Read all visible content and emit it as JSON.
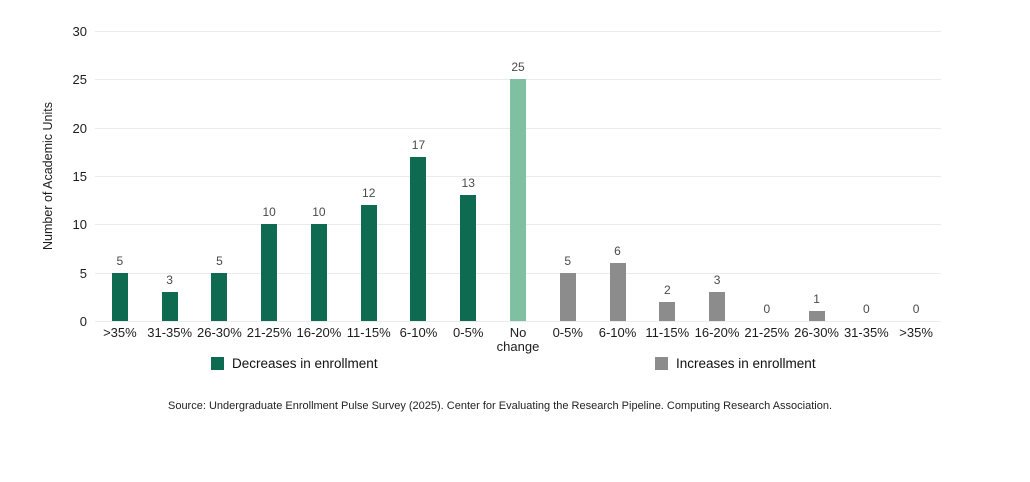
{
  "chart_data": {
    "type": "bar",
    "title": "",
    "xlabel": "",
    "ylabel": "Number of Academic Units",
    "ylim": [
      0,
      30
    ],
    "yticks": [
      0,
      5,
      10,
      15,
      20,
      25,
      30
    ],
    "grid": "horizontal",
    "legend_position": "bottom",
    "categories": [
      ">35%",
      "31-35%",
      "26-30%",
      "21-25%",
      "16-20%",
      "11-15%",
      "6-10%",
      "0-5%",
      "No change",
      "0-5%",
      "6-10%",
      "11-15%",
      "16-20%",
      "21-25%",
      "26-30%",
      "31-35%",
      ">35%"
    ],
    "values": [
      5,
      3,
      5,
      10,
      10,
      12,
      17,
      13,
      25,
      5,
      6,
      2,
      3,
      0,
      1,
      0,
      0
    ],
    "bar_groups": [
      "decrease",
      "decrease",
      "decrease",
      "decrease",
      "decrease",
      "decrease",
      "decrease",
      "decrease",
      "no_change",
      "increase",
      "increase",
      "increase",
      "increase",
      "increase",
      "increase",
      "increase",
      "increase"
    ],
    "colors": {
      "decrease": "#0E6A50",
      "no_change": "#7FC0A3",
      "increase": "#8C8C8C",
      "gridline": "#EBEBEB",
      "value_label": "#4A4A4A",
      "axis_text": "#1C1C1C"
    },
    "legend": [
      {
        "id": "decrease",
        "label": "Decreases in enrollment",
        "color": "#0E6A50"
      },
      {
        "id": "increase",
        "label": "Increases in enrollment",
        "color": "#8C8C8C"
      }
    ]
  },
  "source_note": "Source: Undergraduate Enrollment Pulse Survey (2025). Center for Evaluating the Research Pipeline. Computing Research Association."
}
